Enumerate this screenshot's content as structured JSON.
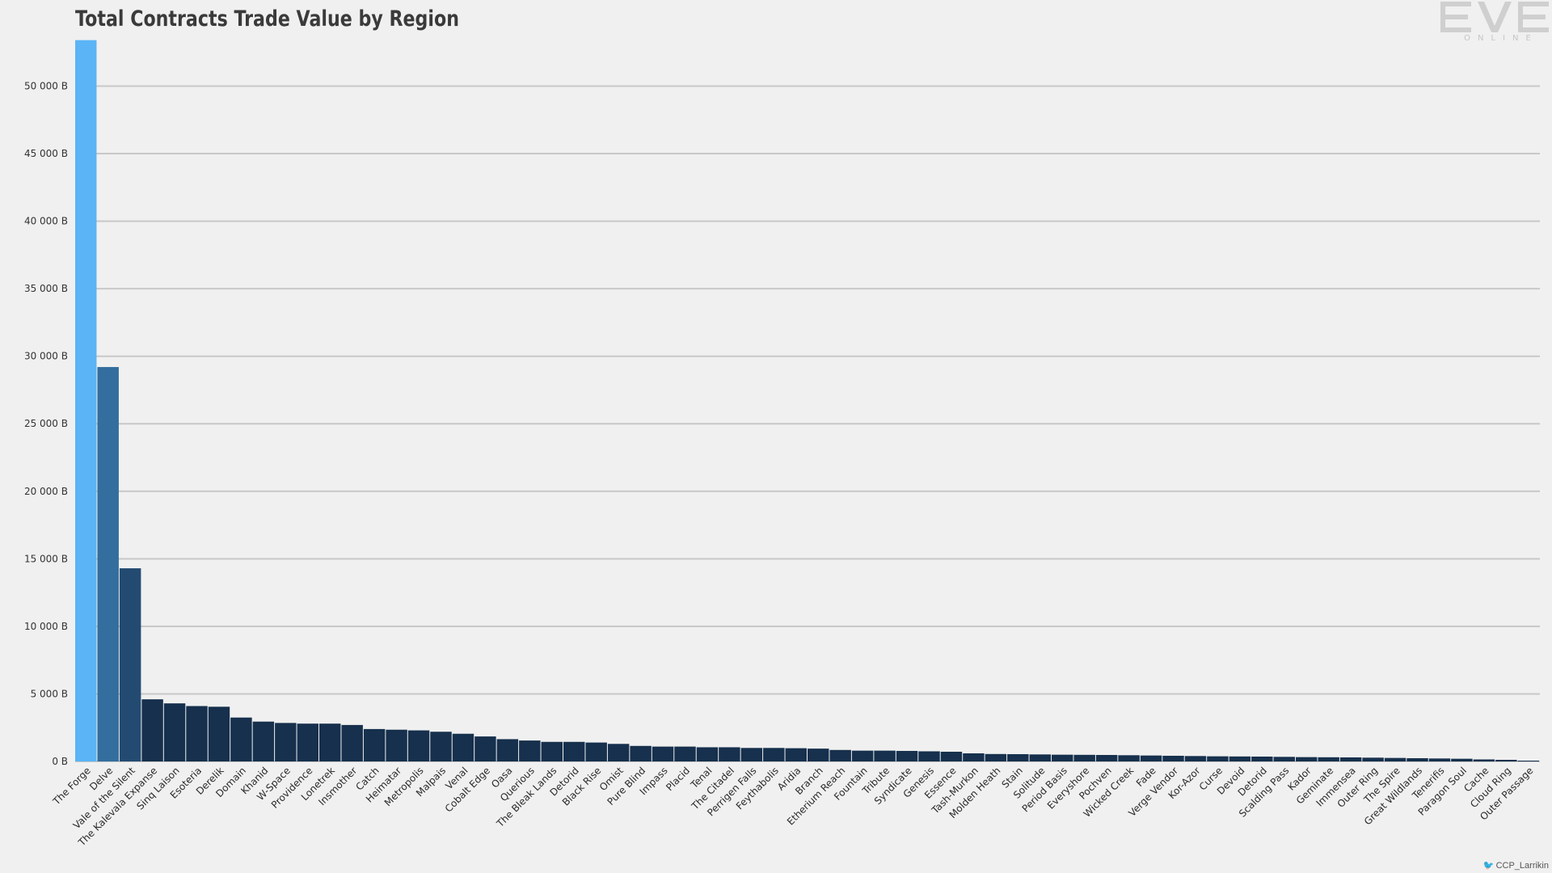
{
  "credit": "CCP_Larrikin",
  "credit_icon": "twitter-bird-icon",
  "logo": {
    "text": "EVE",
    "subtext": "ONLINE",
    "icon": "eve-online-logo"
  },
  "chart_data": {
    "type": "bar",
    "title": "Total Contracts Trade Value by Region",
    "xlabel": "",
    "ylabel": "",
    "ylim": [
      0,
      53500
    ],
    "yticks": [
      0,
      5000,
      10000,
      15000,
      20000,
      25000,
      30000,
      35000,
      40000,
      45000,
      50000
    ],
    "ytick_labels": [
      "0 B",
      "5 000 B",
      "10 000 B",
      "15 000 B",
      "20 000 B",
      "25 000 B",
      "30 000 B",
      "35 000 B",
      "40 000 B",
      "45 000 B",
      "50 000 B"
    ],
    "grid": true,
    "legend": "none",
    "colors": {
      "first": "#5ab4f6",
      "second": "#336e9e",
      "third": "#234b72",
      "rest": "#16304d"
    },
    "categories": [
      "The Forge",
      "Delve",
      "Vale of the Silent",
      "The Kalevala Expanse",
      "Sinq Laison",
      "Esoteria",
      "Derelik",
      "Domain",
      "Khanid",
      "W-Space",
      "Providence",
      "Lonetrek",
      "Insmother",
      "Catch",
      "Heimatar",
      "Metropolis",
      "Malpais",
      "Venal",
      "Cobalt Edge",
      "Oasa",
      "Querious",
      "The Bleak Lands",
      "Detorid",
      "Black Rise",
      "Omist",
      "Pure Blind",
      "Impass",
      "Placid",
      "Tenal",
      "The Citadel",
      "Perrigen Falls",
      "Feythabolis",
      "Aridia",
      "Branch",
      "Etherium Reach",
      "Fountain",
      "Tribute",
      "Syndicate",
      "Genesis",
      "Essence",
      "Tash-Murkon",
      "Molden Heath",
      "Stain",
      "Solitude",
      "Period Basis",
      "Everyshore",
      "Pochven",
      "Wicked Creek",
      "Fade",
      "Verge Vendor",
      "Kor-Azor",
      "Curse",
      "Devoid",
      "Detorid",
      "Scalding Pass",
      "Kador",
      "Geminate",
      "Immensea",
      "Outer Ring",
      "The Spire",
      "Great Wildlands",
      "Tenerifis",
      "Paragon Soul",
      "Cache",
      "Cloud Ring",
      "Outer Passage"
    ],
    "values": [
      53400,
      29200,
      14300,
      4600,
      4300,
      4100,
      4050,
      3250,
      2950,
      2850,
      2800,
      2800,
      2700,
      2400,
      2350,
      2300,
      2200,
      2050,
      1850,
      1650,
      1550,
      1450,
      1450,
      1400,
      1300,
      1150,
      1100,
      1100,
      1050,
      1050,
      1000,
      1000,
      980,
      950,
      850,
      800,
      800,
      780,
      750,
      720,
      600,
      550,
      540,
      520,
      500,
      490,
      480,
      460,
      440,
      420,
      400,
      380,
      370,
      360,
      340,
      320,
      310,
      300,
      280,
      260,
      240,
      220,
      200,
      150,
      120,
      60
    ]
  }
}
